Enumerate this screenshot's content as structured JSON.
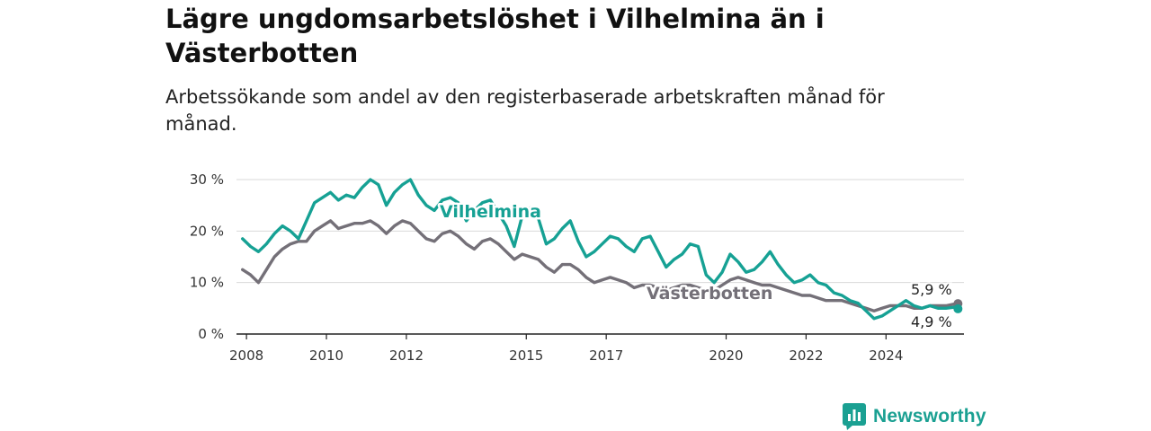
{
  "header": {
    "title": "Lägre ungdomsarbetslöshet i Vilhelmina än i Västerbotten",
    "subtitle": "Arbetssökande som andel av den registerbaserade arbetskraften månad för månad."
  },
  "brand": {
    "name": "Newsworthy",
    "icon": "newsworthy-logo-icon",
    "color": "#1aa092"
  },
  "chart_data": {
    "type": "line",
    "x_ticks": [
      "2008",
      "2010",
      "2012",
      "2015",
      "2017",
      "2020",
      "2022",
      "2024"
    ],
    "y_ticks": [
      "0 %",
      "10 %",
      "20 %",
      "30 %"
    ],
    "ylim": [
      0,
      30
    ],
    "xlim": [
      2007.75,
      2025.95
    ],
    "grid": true,
    "legend": "inline labels",
    "series": [
      {
        "name": "Vilhelmina",
        "color": "#16a194",
        "end_label": "4,9 %",
        "x": [
          2007.9,
          2008.1,
          2008.3,
          2008.5,
          2008.7,
          2008.9,
          2009.1,
          2009.3,
          2009.5,
          2009.7,
          2009.9,
          2010.1,
          2010.3,
          2010.5,
          2010.7,
          2010.9,
          2011.1,
          2011.3,
          2011.5,
          2011.7,
          2011.9,
          2012.1,
          2012.3,
          2012.5,
          2012.7,
          2012.9,
          2013.1,
          2013.3,
          2013.5,
          2013.7,
          2013.9,
          2014.1,
          2014.3,
          2014.5,
          2014.7,
          2014.9,
          2015.1,
          2015.3,
          2015.5,
          2015.7,
          2015.9,
          2016.1,
          2016.3,
          2016.5,
          2016.7,
          2016.9,
          2017.1,
          2017.3,
          2017.5,
          2017.7,
          2017.9,
          2018.1,
          2018.3,
          2018.5,
          2018.7,
          2018.9,
          2019.1,
          2019.3,
          2019.5,
          2019.7,
          2019.9,
          2020.1,
          2020.3,
          2020.5,
          2020.7,
          2020.9,
          2021.1,
          2021.3,
          2021.5,
          2021.7,
          2021.9,
          2022.1,
          2022.3,
          2022.5,
          2022.7,
          2022.9,
          2023.1,
          2023.3,
          2023.5,
          2023.7,
          2023.9,
          2024.1,
          2024.3,
          2024.5,
          2024.7,
          2024.9,
          2025.1,
          2025.3,
          2025.5,
          2025.7,
          2025.8
        ],
        "y": [
          18.5,
          17.0,
          16.0,
          17.5,
          19.5,
          21.0,
          20.0,
          18.5,
          22.0,
          25.5,
          26.5,
          27.5,
          26.0,
          27.0,
          26.5,
          28.5,
          30.0,
          29.0,
          25.0,
          27.5,
          29.0,
          30.0,
          27.0,
          25.0,
          24.0,
          26.0,
          26.5,
          25.5,
          22.0,
          24.0,
          25.5,
          26.0,
          23.5,
          21.0,
          17.0,
          23.0,
          24.5,
          22.5,
          17.5,
          18.5,
          20.5,
          22.0,
          18.0,
          15.0,
          16.0,
          17.5,
          19.0,
          18.5,
          17.0,
          16.0,
          18.5,
          19.0,
          16.0,
          13.0,
          14.5,
          15.5,
          17.5,
          17.0,
          11.5,
          10.0,
          12.0,
          15.5,
          14.0,
          12.0,
          12.5,
          14.0,
          16.0,
          13.5,
          11.5,
          10.0,
          10.5,
          11.5,
          10.0,
          9.5,
          8.0,
          7.5,
          6.5,
          6.0,
          4.5,
          3.0,
          3.5,
          4.5,
          5.5,
          6.5,
          5.5,
          5.0,
          5.5,
          5.0,
          5.0,
          5.2,
          4.9
        ]
      },
      {
        "name": "Västerbotten",
        "color": "#747078",
        "end_label": "5,9 %",
        "x": [
          2007.9,
          2008.1,
          2008.3,
          2008.5,
          2008.7,
          2008.9,
          2009.1,
          2009.3,
          2009.5,
          2009.7,
          2009.9,
          2010.1,
          2010.3,
          2010.5,
          2010.7,
          2010.9,
          2011.1,
          2011.3,
          2011.5,
          2011.7,
          2011.9,
          2012.1,
          2012.3,
          2012.5,
          2012.7,
          2012.9,
          2013.1,
          2013.3,
          2013.5,
          2013.7,
          2013.9,
          2014.1,
          2014.3,
          2014.5,
          2014.7,
          2014.9,
          2015.1,
          2015.3,
          2015.5,
          2015.7,
          2015.9,
          2016.1,
          2016.3,
          2016.5,
          2016.7,
          2016.9,
          2017.1,
          2017.3,
          2017.5,
          2017.7,
          2017.9,
          2018.1,
          2018.3,
          2018.5,
          2018.7,
          2018.9,
          2019.1,
          2019.3,
          2019.5,
          2019.7,
          2019.9,
          2020.1,
          2020.3,
          2020.5,
          2020.7,
          2020.9,
          2021.1,
          2021.3,
          2021.5,
          2021.7,
          2021.9,
          2022.1,
          2022.3,
          2022.5,
          2022.7,
          2022.9,
          2023.1,
          2023.3,
          2023.5,
          2023.7,
          2023.9,
          2024.1,
          2024.3,
          2024.5,
          2024.7,
          2024.9,
          2025.1,
          2025.3,
          2025.5,
          2025.7,
          2025.8
        ],
        "y": [
          12.5,
          11.5,
          10.0,
          12.5,
          15.0,
          16.5,
          17.5,
          18.0,
          18.0,
          20.0,
          21.0,
          22.0,
          20.5,
          21.0,
          21.5,
          21.5,
          22.0,
          21.0,
          19.5,
          21.0,
          22.0,
          21.5,
          20.0,
          18.5,
          18.0,
          19.5,
          20.0,
          19.0,
          17.5,
          16.5,
          18.0,
          18.5,
          17.5,
          16.0,
          14.5,
          15.5,
          15.0,
          14.5,
          13.0,
          12.0,
          13.5,
          13.5,
          12.5,
          11.0,
          10.0,
          10.5,
          11.0,
          10.5,
          10.0,
          9.0,
          9.5,
          9.5,
          9.0,
          8.5,
          9.0,
          9.5,
          9.5,
          9.0,
          8.5,
          8.5,
          9.5,
          10.5,
          11.0,
          10.5,
          10.0,
          9.5,
          9.5,
          9.0,
          8.5,
          8.0,
          7.5,
          7.5,
          7.0,
          6.5,
          6.5,
          6.5,
          6.0,
          5.5,
          5.0,
          4.5,
          5.0,
          5.5,
          5.5,
          5.5,
          5.0,
          5.0,
          5.5,
          5.5,
          5.5,
          5.8,
          5.9
        ]
      }
    ]
  }
}
